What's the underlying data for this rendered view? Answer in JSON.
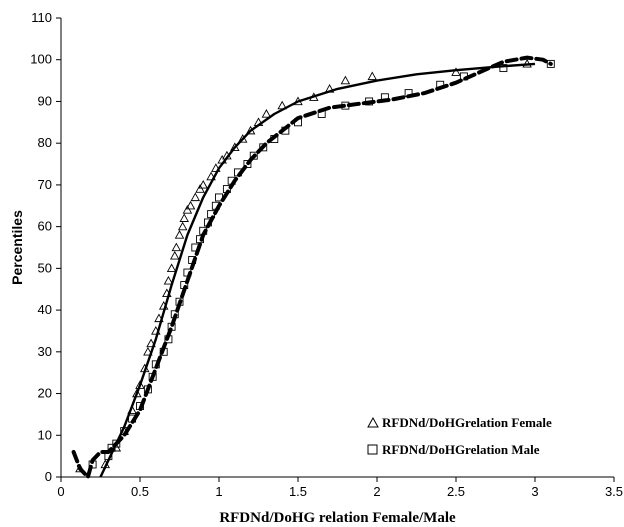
{
  "chart_data": {
    "type": "scatter",
    "xlabel": "RFDNd/DoHG relation Female/Male",
    "ylabel": "Percentiles",
    "xlim": [
      0,
      3.5
    ],
    "ylim": [
      0,
      110
    ],
    "xticks": [
      "0",
      "0.5",
      "1",
      "1.5",
      "2",
      "2.5",
      "3",
      "3.5"
    ],
    "yticks": [
      "0",
      "10",
      "20",
      "30",
      "40",
      "50",
      "60",
      "70",
      "80",
      "90",
      "100",
      "110"
    ],
    "grid": false,
    "legend_position": "bottom-right",
    "series": [
      {
        "name": "RFDNd/DoHGrelation Female",
        "marker": "triangle",
        "color": "#000000",
        "points": [
          [
            0.12,
            2
          ],
          [
            0.28,
            3
          ],
          [
            0.35,
            7
          ],
          [
            0.4,
            11
          ],
          [
            0.45,
            16
          ],
          [
            0.48,
            20
          ],
          [
            0.5,
            22
          ],
          [
            0.53,
            26
          ],
          [
            0.55,
            30
          ],
          [
            0.57,
            32
          ],
          [
            0.6,
            35
          ],
          [
            0.62,
            38
          ],
          [
            0.65,
            41
          ],
          [
            0.67,
            44
          ],
          [
            0.68,
            47
          ],
          [
            0.7,
            50
          ],
          [
            0.72,
            53
          ],
          [
            0.73,
            55
          ],
          [
            0.75,
            58
          ],
          [
            0.77,
            60
          ],
          [
            0.78,
            62
          ],
          [
            0.8,
            64
          ],
          [
            0.82,
            65
          ],
          [
            0.85,
            67
          ],
          [
            0.88,
            69
          ],
          [
            0.9,
            70
          ],
          [
            0.95,
            72
          ],
          [
            0.98,
            74
          ],
          [
            1.02,
            76
          ],
          [
            1.05,
            77
          ],
          [
            1.1,
            79
          ],
          [
            1.15,
            81
          ],
          [
            1.2,
            83
          ],
          [
            1.25,
            85
          ],
          [
            1.3,
            87
          ],
          [
            1.4,
            89
          ],
          [
            1.5,
            90
          ],
          [
            1.6,
            91
          ],
          [
            1.7,
            93
          ],
          [
            1.8,
            95
          ],
          [
            1.97,
            96
          ],
          [
            2.5,
            97
          ],
          [
            2.95,
            99
          ]
        ]
      },
      {
        "name": "RFDNd/DoHGrelation Male",
        "marker": "square",
        "color": "#000000",
        "points": [
          [
            0.2,
            3
          ],
          [
            0.3,
            5
          ],
          [
            0.32,
            7
          ],
          [
            0.35,
            8
          ],
          [
            0.4,
            11
          ],
          [
            0.45,
            14
          ],
          [
            0.5,
            17
          ],
          [
            0.55,
            21
          ],
          [
            0.58,
            24
          ],
          [
            0.6,
            27
          ],
          [
            0.65,
            30
          ],
          [
            0.68,
            33
          ],
          [
            0.7,
            36
          ],
          [
            0.72,
            39
          ],
          [
            0.75,
            42
          ],
          [
            0.78,
            46
          ],
          [
            0.8,
            49
          ],
          [
            0.83,
            52
          ],
          [
            0.85,
            55
          ],
          [
            0.88,
            57
          ],
          [
            0.9,
            59
          ],
          [
            0.93,
            61
          ],
          [
            0.95,
            63
          ],
          [
            0.98,
            65
          ],
          [
            1.0,
            67
          ],
          [
            1.05,
            69
          ],
          [
            1.08,
            71
          ],
          [
            1.12,
            73
          ],
          [
            1.18,
            75
          ],
          [
            1.22,
            77
          ],
          [
            1.28,
            79
          ],
          [
            1.35,
            81
          ],
          [
            1.42,
            83
          ],
          [
            1.5,
            85
          ],
          [
            1.65,
            87
          ],
          [
            1.8,
            89
          ],
          [
            1.95,
            90
          ],
          [
            2.05,
            91
          ],
          [
            2.2,
            92
          ],
          [
            2.4,
            94
          ],
          [
            2.55,
            96
          ],
          [
            2.8,
            98
          ],
          [
            3.1,
            99
          ]
        ]
      }
    ],
    "trendlines": [
      {
        "style": "solid",
        "points": [
          [
            0.25,
            0
          ],
          [
            0.3,
            4
          ],
          [
            0.4,
            12
          ],
          [
            0.5,
            22
          ],
          [
            0.6,
            33
          ],
          [
            0.7,
            46
          ],
          [
            0.8,
            58
          ],
          [
            0.9,
            67
          ],
          [
            1.0,
            74
          ],
          [
            1.1,
            79
          ],
          [
            1.2,
            83
          ],
          [
            1.35,
            87
          ],
          [
            1.5,
            90
          ],
          [
            1.75,
            93
          ],
          [
            2.0,
            95
          ],
          [
            2.25,
            96.5
          ],
          [
            2.5,
            97.5
          ],
          [
            2.75,
            98.3
          ],
          [
            3.0,
            99
          ]
        ]
      },
      {
        "style": "dashed",
        "points": [
          [
            0.08,
            6
          ],
          [
            0.12,
            2
          ],
          [
            0.17,
            0
          ],
          [
            0.2,
            4
          ],
          [
            0.25,
            6
          ],
          [
            0.3,
            6
          ],
          [
            0.35,
            8
          ],
          [
            0.4,
            10
          ],
          [
            0.5,
            16
          ],
          [
            0.6,
            26
          ],
          [
            0.7,
            36
          ],
          [
            0.8,
            47
          ],
          [
            0.9,
            58
          ],
          [
            1.0,
            65
          ],
          [
            1.1,
            71
          ],
          [
            1.2,
            76
          ],
          [
            1.3,
            80
          ],
          [
            1.4,
            83
          ],
          [
            1.5,
            86
          ],
          [
            1.7,
            88.5
          ],
          [
            1.9,
            89.5
          ],
          [
            2.1,
            90.5
          ],
          [
            2.3,
            92
          ],
          [
            2.5,
            94.5
          ],
          [
            2.65,
            97
          ],
          [
            2.8,
            99.5
          ],
          [
            2.95,
            100.5
          ],
          [
            3.05,
            100
          ],
          [
            3.1,
            99
          ]
        ]
      }
    ]
  }
}
